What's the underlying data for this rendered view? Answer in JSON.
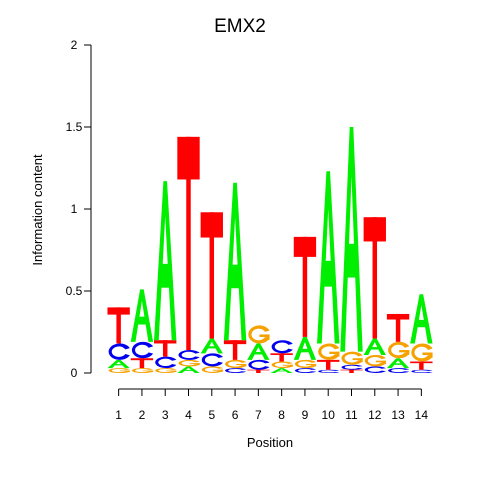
{
  "chart_data": {
    "type": "sequence-logo",
    "title": "EMX2",
    "xlabel": "Position",
    "ylabel": "Information content",
    "ylim": [
      0,
      2
    ],
    "y_ticks": [
      "0",
      "0.5",
      "1",
      "1.5",
      "2"
    ],
    "positions": [
      "1",
      "2",
      "3",
      "4",
      "5",
      "6",
      "7",
      "8",
      "9",
      "10",
      "11",
      "12",
      "13",
      "14"
    ],
    "colors": {
      "A": "#00ee00",
      "C": "#0000ee",
      "G": "#f5a100",
      "T": "#ff0000"
    },
    "stacks": [
      [
        {
          "letter": "G",
          "height": 0.03
        },
        {
          "letter": "A",
          "height": 0.05
        },
        {
          "letter": "C",
          "height": 0.1
        },
        {
          "letter": "T",
          "height": 0.22
        }
      ],
      [
        {
          "letter": "G",
          "height": 0.03
        },
        {
          "letter": "T",
          "height": 0.06
        },
        {
          "letter": "C",
          "height": 0.1
        },
        {
          "letter": "A",
          "height": 0.32
        }
      ],
      [
        {
          "letter": "G",
          "height": 0.03
        },
        {
          "letter": "C",
          "height": 0.07
        },
        {
          "letter": "T",
          "height": 0.1
        },
        {
          "letter": "A",
          "height": 0.97
        }
      ],
      [
        {
          "letter": "A",
          "height": 0.04
        },
        {
          "letter": "G",
          "height": 0.04
        },
        {
          "letter": "C",
          "height": 0.06
        },
        {
          "letter": "T",
          "height": 1.3
        }
      ],
      [
        {
          "letter": "G",
          "height": 0.04
        },
        {
          "letter": "C",
          "height": 0.08
        },
        {
          "letter": "A",
          "height": 0.09
        },
        {
          "letter": "T",
          "height": 0.77
        }
      ],
      [
        {
          "letter": "C",
          "height": 0.03
        },
        {
          "letter": "G",
          "height": 0.05
        },
        {
          "letter": "T",
          "height": 0.12
        },
        {
          "letter": "A",
          "height": 0.96
        }
      ],
      [
        {
          "letter": "T",
          "height": 0.02
        },
        {
          "letter": "C",
          "height": 0.06
        },
        {
          "letter": "A",
          "height": 0.1
        },
        {
          "letter": "G",
          "height": 0.11
        }
      ],
      [
        {
          "letter": "A",
          "height": 0.03
        },
        {
          "letter": "G",
          "height": 0.04
        },
        {
          "letter": "T",
          "height": 0.05
        },
        {
          "letter": "C",
          "height": 0.08
        }
      ],
      [
        {
          "letter": "C",
          "height": 0.03
        },
        {
          "letter": "G",
          "height": 0.05
        },
        {
          "letter": "A",
          "height": 0.14
        },
        {
          "letter": "T",
          "height": 0.61
        }
      ],
      [
        {
          "letter": "C",
          "height": 0.02
        },
        {
          "letter": "T",
          "height": 0.06
        },
        {
          "letter": "G",
          "height": 0.1
        },
        {
          "letter": "A",
          "height": 1.05
        }
      ],
      [
        {
          "letter": "T",
          "height": 0.02
        },
        {
          "letter": "C",
          "height": 0.03
        },
        {
          "letter": "G",
          "height": 0.08
        },
        {
          "letter": "A",
          "height": 1.37
        }
      ],
      [
        {
          "letter": "C",
          "height": 0.04
        },
        {
          "letter": "G",
          "height": 0.07
        },
        {
          "letter": "A",
          "height": 0.1
        },
        {
          "letter": "T",
          "height": 0.74
        }
      ],
      [
        {
          "letter": "C",
          "height": 0.03
        },
        {
          "letter": "A",
          "height": 0.06
        },
        {
          "letter": "G",
          "height": 0.1
        },
        {
          "letter": "T",
          "height": 0.17
        }
      ],
      [
        {
          "letter": "C",
          "height": 0.02
        },
        {
          "letter": "T",
          "height": 0.05
        },
        {
          "letter": "G",
          "height": 0.11
        },
        {
          "letter": "A",
          "height": 0.3
        }
      ]
    ]
  }
}
